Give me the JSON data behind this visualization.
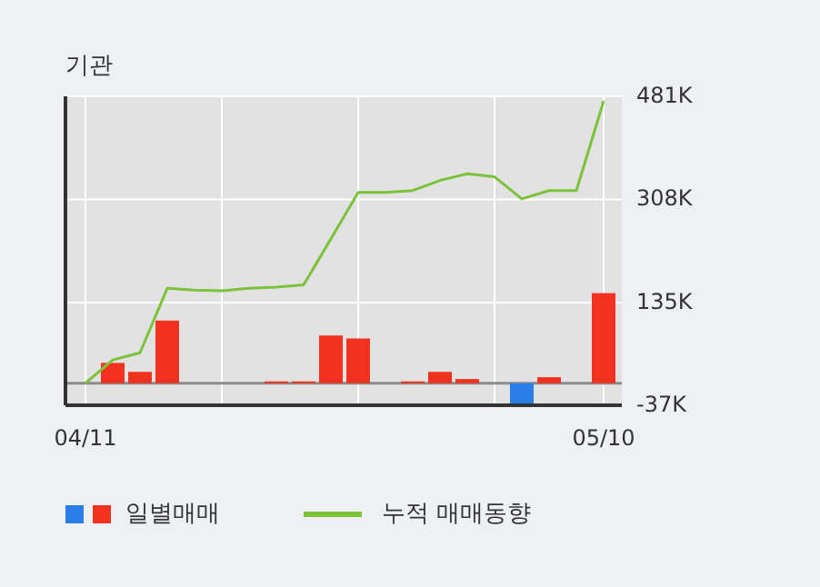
{
  "chart_data": {
    "type": "bar",
    "title": "기관",
    "categories": [
      "04/11",
      null,
      null,
      null,
      null,
      null,
      null,
      null,
      null,
      null,
      null,
      null,
      null,
      null,
      null,
      null,
      null,
      null,
      null,
      "05/10"
    ],
    "series": [
      {
        "name": "일별매매",
        "colors": [
          "#f0321e",
          "#f0321e",
          "#f0321e",
          "#f0321e",
          "#f0321e",
          "#f0321e",
          "#f0321e",
          "#f0321e",
          "#f0321e",
          "#f0321e",
          "#f0321e",
          "#f0321e",
          "#f0321e",
          "#f0321e",
          "#f0321e",
          "#f0321e",
          "#2a7fe6",
          "#f0321e",
          "#f0321e",
          "#f0321e"
        ],
        "values": [
          0,
          34,
          19,
          105,
          0,
          0,
          0,
          3,
          3,
          80,
          75,
          0,
          3,
          19,
          7,
          0,
          -35,
          10,
          0,
          151
        ]
      },
      {
        "name": "누적 매매동향",
        "type": "line",
        "color": "#7cc23a",
        "values": [
          0,
          39,
          51,
          159,
          156,
          155,
          159,
          161,
          165,
          242,
          320,
          320,
          323,
          340,
          351,
          346,
          309,
          323,
          323,
          473
        ]
      }
    ],
    "ylim": [
      -37,
      481
    ],
    "yticks": [
      {
        "value": -37,
        "label": "-37K"
      },
      {
        "value": 135,
        "label": "135K"
      },
      {
        "value": 308,
        "label": "308K"
      },
      {
        "value": 481,
        "label": "481K"
      }
    ],
    "ref_lines": [
      {
        "axis": "y",
        "value": 0,
        "color": "#8c8c8c"
      }
    ],
    "grid": true,
    "legend": "bottom"
  }
}
